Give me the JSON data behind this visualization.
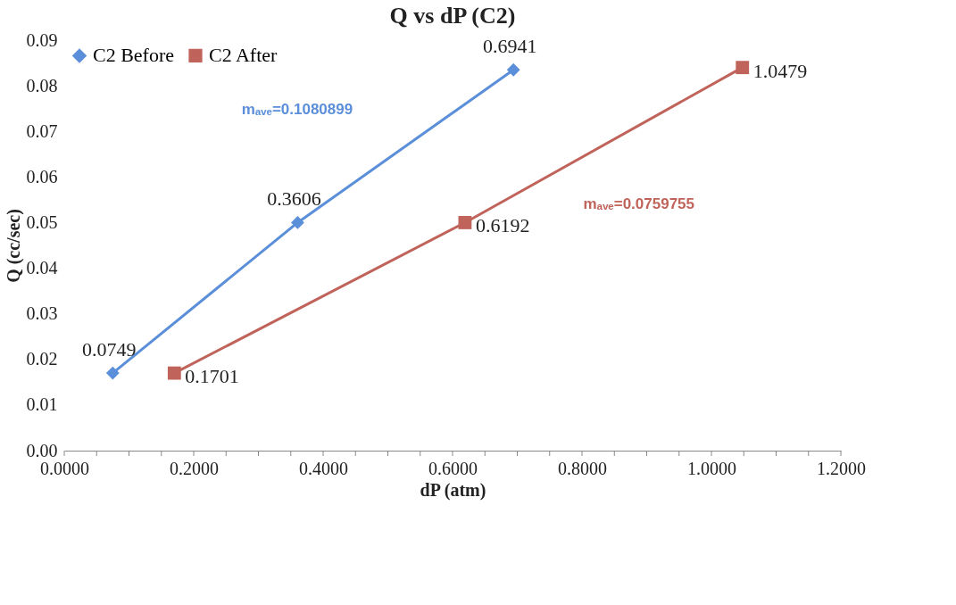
{
  "chart_data": {
    "type": "line",
    "title": "Q vs dP (C2)",
    "xlabel": "dP (atm)",
    "ylabel": "Q (cc/sec)",
    "series": [
      {
        "name": "C2 Before",
        "color": "#5b8fd9",
        "marker": "diamond",
        "x": [
          0.0749,
          0.3606,
          0.6941
        ],
        "values": [
          0.017,
          0.05,
          0.0835
        ]
      },
      {
        "name": "C2 After",
        "color": "#c0635a",
        "marker": "square",
        "x": [
          0.1701,
          0.6192,
          1.0479
        ],
        "values": [
          0.017,
          0.05,
          0.084
        ]
      }
    ],
    "xlim": [
      0,
      1.2
    ],
    "ylim": [
      0,
      0.09
    ],
    "xticks": [
      {
        "value": 0,
        "label": "0.0000"
      },
      {
        "value": 0.05,
        "label": null
      },
      {
        "value": 0.1,
        "label": null
      },
      {
        "value": 0.15,
        "label": null
      },
      {
        "value": 0.2,
        "label": "0.2000"
      },
      {
        "value": 0.25,
        "label": null
      },
      {
        "value": 0.3,
        "label": null
      },
      {
        "value": 0.35,
        "label": null
      },
      {
        "value": 0.4,
        "label": "0.4000"
      },
      {
        "value": 0.45,
        "label": null
      },
      {
        "value": 0.5,
        "label": null
      },
      {
        "value": 0.55,
        "label": null
      },
      {
        "value": 0.6,
        "label": "0.6000"
      },
      {
        "value": 0.65,
        "label": null
      },
      {
        "value": 0.7,
        "label": null
      },
      {
        "value": 0.75,
        "label": null
      },
      {
        "value": 0.8,
        "label": "0.8000"
      },
      {
        "value": 0.85,
        "label": null
      },
      {
        "value": 0.9,
        "label": null
      },
      {
        "value": 0.95,
        "label": null
      },
      {
        "value": 1.0,
        "label": "1.0000"
      },
      {
        "value": 1.05,
        "label": null
      },
      {
        "value": 1.1,
        "label": null
      },
      {
        "value": 1.15,
        "label": null
      },
      {
        "value": 1.2,
        "label": "1.2000"
      }
    ],
    "yticks": [
      {
        "value": 0,
        "label": "0.00"
      },
      {
        "value": 0.01,
        "label": "0.01"
      },
      {
        "value": 0.02,
        "label": "0.02"
      },
      {
        "value": 0.03,
        "label": "0.03"
      },
      {
        "value": 0.04,
        "label": "0.04"
      },
      {
        "value": 0.05,
        "label": "0.05"
      },
      {
        "value": 0.06,
        "label": "0.06"
      },
      {
        "value": 0.07,
        "label": "0.07"
      },
      {
        "value": 0.08,
        "label": "0.08"
      },
      {
        "value": 0.09,
        "label": "0.09"
      }
    ],
    "annotations": [
      "mₐᵥₑ=0.1080899",
      "mₐᵥₑ=0.0759755",
      {
        "text": "0.0749",
        "x": 0.0749,
        "y": 0.017
      },
      {
        "text": "0.3606",
        "x": 0.3606,
        "y": 0.05
      },
      {
        "text": "0.6941",
        "x": 0.6941,
        "y": 0.0835
      },
      {
        "text": "0.1701",
        "x": 0.1701,
        "y": 0.017
      },
      {
        "text": "0.6192",
        "x": 0.6192,
        "y": 0.05
      },
      {
        "text": "1.0479",
        "x": 1.0479,
        "y": 0.084
      }
    ],
    "legend": "top left",
    "grid": false,
    "line_style": "solid"
  }
}
